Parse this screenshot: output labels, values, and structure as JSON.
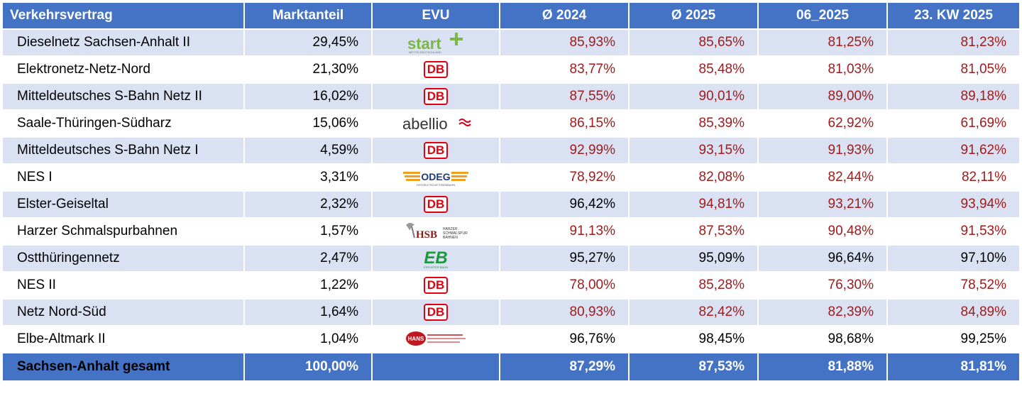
{
  "header": {
    "col_contract": "Verkehrsvertrag",
    "col_share": "Marktanteil",
    "col_evu": "EVU",
    "col_2024": "Ø 2024",
    "col_2025": "Ø 2025",
    "col_06": "06_2025",
    "col_kw": "23. KW 2025"
  },
  "colors": {
    "header_bg": "#4472c4",
    "band": "#d9e1f2",
    "red_value": "#a01c1c",
    "db_red": "#e3000f"
  },
  "rows": [
    {
      "name": "Dieselnetz Sachsen-Anhalt II",
      "share": "29,45%",
      "evu": "start-logo",
      "avg2024": "85,93%",
      "avg2025": "85,65%",
      "m06": "81,25%",
      "kw": "81,23%"
    },
    {
      "name": "Elektronetz-Netz-Nord",
      "share": "21,30%",
      "evu": "db-logo",
      "avg2024": "83,77%",
      "avg2025": "85,48%",
      "m06": "81,03%",
      "kw": "81,05%"
    },
    {
      "name": "Mitteldeutsches S-Bahn Netz II",
      "share": "16,02%",
      "evu": "db-logo",
      "avg2024": "87,55%",
      "avg2025": "90,01%",
      "m06": "89,00%",
      "kw": "89,18%"
    },
    {
      "name": "Saale-Thüringen-Südharz",
      "share": "15,06%",
      "evu": "abellio-logo",
      "avg2024": "86,15%",
      "avg2025": "85,39%",
      "m06": "62,92%",
      "kw": "61,69%"
    },
    {
      "name": "Mitteldeutsches S-Bahn Netz I",
      "share": "4,59%",
      "evu": "db-logo",
      "avg2024": "92,99%",
      "avg2025": "93,15%",
      "m06": "91,93%",
      "kw": "91,62%"
    },
    {
      "name": "NES I",
      "share": "3,31%",
      "evu": "odeg-logo",
      "avg2024": "78,92%",
      "avg2025": "82,08%",
      "m06": "82,44%",
      "kw": "82,11%"
    },
    {
      "name": "Elster-Geiseltal",
      "share": "2,32%",
      "evu": "db-logo",
      "avg2024": "96,42%",
      "avg2025": "94,81%",
      "m06": "93,21%",
      "kw": "93,94%"
    },
    {
      "name": "Harzer Schmalspurbahnen",
      "share": "1,57%",
      "evu": "hsb-logo",
      "avg2024": "91,13%",
      "avg2025": "87,53%",
      "m06": "90,48%",
      "kw": "91,53%"
    },
    {
      "name": "Ostthüringennetz",
      "share": "2,47%",
      "evu": "eb-logo",
      "avg2024": "95,27%",
      "avg2025": "95,09%",
      "m06": "96,64%",
      "kw": "97,10%"
    },
    {
      "name": "NES II",
      "share": "1,22%",
      "evu": "db-logo",
      "avg2024": "78,00%",
      "avg2025": "85,28%",
      "m06": "76,30%",
      "kw": "78,52%"
    },
    {
      "name": "Netz Nord-Süd",
      "share": "1,64%",
      "evu": "db-logo",
      "avg2024": "80,93%",
      "avg2025": "82,42%",
      "m06": "82,39%",
      "kw": "84,89%"
    },
    {
      "name": "Elbe-Altmark II",
      "share": "1,04%",
      "evu": "hans-logo",
      "avg2024": "96,76%",
      "avg2025": "98,45%",
      "m06": "98,68%",
      "kw": "99,25%"
    }
  ],
  "value_colors": [
    [
      "red",
      "red",
      "red",
      "red"
    ],
    [
      "red",
      "red",
      "red",
      "red"
    ],
    [
      "red",
      "red",
      "red",
      "red"
    ],
    [
      "red",
      "red",
      "red",
      "red"
    ],
    [
      "red",
      "red",
      "red",
      "red"
    ],
    [
      "red",
      "red",
      "red",
      "red"
    ],
    [
      "black",
      "red",
      "red",
      "red"
    ],
    [
      "red",
      "red",
      "red",
      "red"
    ],
    [
      "black",
      "black",
      "black",
      "black"
    ],
    [
      "red",
      "red",
      "red",
      "red"
    ],
    [
      "red",
      "red",
      "red",
      "red"
    ],
    [
      "black",
      "black",
      "black",
      "black"
    ]
  ],
  "logos": {
    "db": "DB",
    "start": "start",
    "abellio": "abellio",
    "odeg": "ODEG",
    "hsb": "HSB",
    "eb": "EB",
    "hans": "HANS"
  },
  "total": {
    "name": "Sachsen-Anhalt gesamt",
    "share": "100,00%",
    "evu": "",
    "avg2024": "87,29%",
    "avg2025": "87,53%",
    "m06": "81,88%",
    "kw": "81,81%"
  }
}
